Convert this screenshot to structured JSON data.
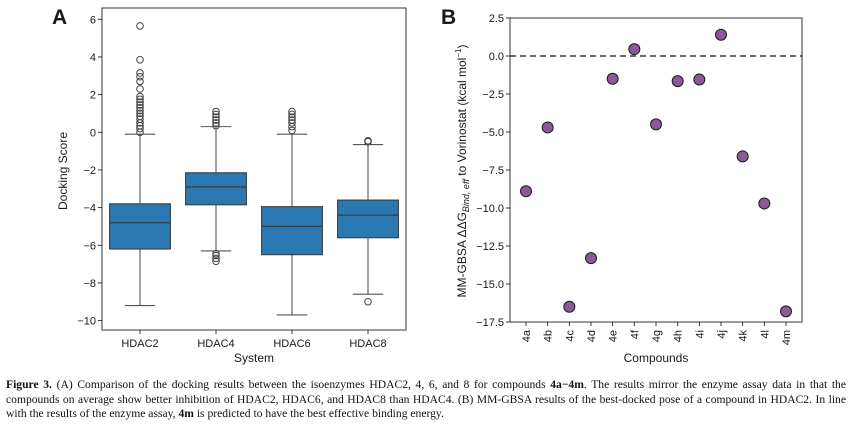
{
  "panel_a": {
    "letter": "A"
  },
  "panel_b": {
    "letter": "B"
  },
  "chart_data": [
    {
      "type": "box",
      "title": "",
      "xlabel": "System",
      "ylabel": "Docking Score",
      "ylim": [
        -10.5,
        6.6
      ],
      "yticks": [
        -10,
        -8,
        -6,
        -4,
        -2,
        0,
        2,
        4,
        6
      ],
      "grid": false,
      "color": "#2a78b2",
      "categories": [
        "HDAC2",
        "HDAC4",
        "HDAC6",
        "HDAC8"
      ],
      "boxes": [
        {
          "name": "HDAC2",
          "whislo": -9.2,
          "q1": -6.2,
          "med": -4.8,
          "q3": -3.8,
          "whishi": -0.1,
          "fliers": [
            0.0,
            0.2,
            0.35,
            0.5,
            0.7,
            0.85,
            1.0,
            1.15,
            1.3,
            1.45,
            1.6,
            1.75,
            1.9,
            2.3,
            2.7,
            2.95,
            3.15,
            3.85,
            5.65
          ]
        },
        {
          "name": "HDAC4",
          "whislo": -6.3,
          "q1": -3.85,
          "med": -2.9,
          "q3": -2.15,
          "whishi": 0.3,
          "fliers": [
            -6.85,
            -6.7,
            -6.55,
            -6.45,
            0.35,
            0.5,
            0.65,
            0.8,
            0.95,
            1.1
          ]
        },
        {
          "name": "HDAC6",
          "whislo": -9.7,
          "q1": -6.5,
          "med": -5.0,
          "q3": -3.95,
          "whishi": -0.1,
          "fliers": [
            0.1,
            0.3,
            0.5,
            0.65,
            0.8,
            0.95,
            1.1
          ]
        },
        {
          "name": "HDAC8",
          "whislo": -8.6,
          "q1": -5.6,
          "med": -4.4,
          "q3": -3.6,
          "whishi": -0.65,
          "fliers": [
            -9.0,
            -0.5,
            -0.45
          ]
        }
      ]
    },
    {
      "type": "scatter",
      "title": "",
      "xlabel": "Compounds",
      "ylabel_parts": [
        "MM-GBSA ΔΔG",
        "Bind, eff",
        " to Vorinostat (kcal mol",
        "−1",
        ")"
      ],
      "ylim": [
        -17.5,
        2.5
      ],
      "yticks": [
        2.5,
        0.0,
        -2.5,
        -5.0,
        -7.5,
        -10.0,
        -12.5,
        -15.0,
        -17.5
      ],
      "ytick_labels": [
        "2.5",
        "0.0",
        "−2.5",
        "−5.0",
        "−7.5",
        "−10.0",
        "−12.5",
        "−15.0",
        "−17.5"
      ],
      "grid": false,
      "reference_line": {
        "y": 0.0,
        "style": "dashed"
      },
      "marker_color": "#8a5a97",
      "categories": [
        "4a",
        "4b",
        "4c",
        "4d",
        "4e",
        "4f",
        "4g",
        "4h",
        "4i",
        "4j",
        "4k",
        "4l",
        "4m"
      ],
      "values": [
        -8.9,
        -4.7,
        -16.5,
        -13.3,
        -1.5,
        0.45,
        -4.5,
        -1.65,
        -1.55,
        1.4,
        -6.6,
        -9.7,
        -16.8
      ]
    }
  ],
  "caption": {
    "parts": [
      {
        "t": "Figure 3.",
        "b": true
      },
      {
        "t": " (A) Comparison of the docking results between the isoenzymes HDAC2, 4, 6, and 8 for compounds ",
        "b": false
      },
      {
        "t": "4a−4m",
        "b": true
      },
      {
        "t": ". The results mirror the enzyme assay data in that the compounds on average show better inhibition of HDAC2, HDAC6, and HDAC8 than HDAC4. (B) MM-GBSA results of the best-docked pose of a compound in HDAC2. In line with the results of the enzyme assay, ",
        "b": false
      },
      {
        "t": "4m",
        "b": true
      },
      {
        "t": " is predicted to have the best effective binding energy.",
        "b": false
      }
    ]
  }
}
